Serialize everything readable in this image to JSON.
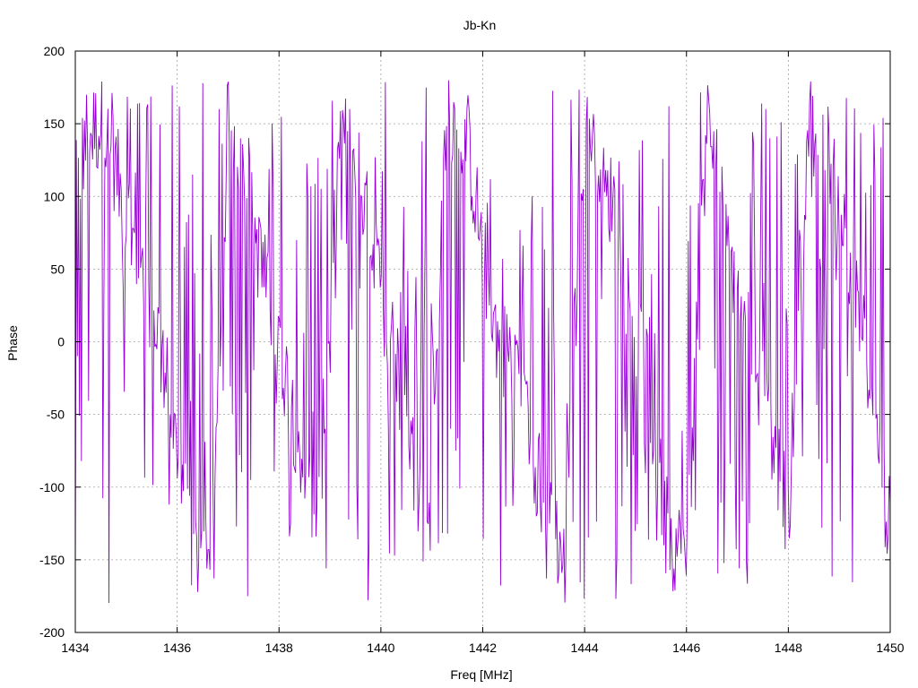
{
  "chart_data": {
    "type": "line",
    "title": "Jb-Kn",
    "xlabel": "Freq [MHz]",
    "ylabel": "Phase",
    "xlim": [
      1434,
      1450
    ],
    "ylim": [
      -200,
      200
    ],
    "xticks": [
      1434,
      1436,
      1438,
      1440,
      1442,
      1444,
      1446,
      1448,
      1450
    ],
    "yticks": [
      -200,
      -150,
      -100,
      -50,
      0,
      50,
      100,
      150,
      200
    ],
    "grid": true,
    "series": [
      {
        "color": "#9400d3",
        "trend": {
          "x": [
            1434.0,
            1434.2,
            1434.5,
            1434.8,
            1435.0,
            1435.2,
            1435.4,
            1435.7,
            1436.0,
            1436.3,
            1436.7,
            1437.0,
            1437.3,
            1437.6,
            1438.0,
            1438.4,
            1438.8,
            1439.2,
            1439.6,
            1439.9,
            1440.2,
            1440.5,
            1440.9,
            1441.3,
            1441.7,
            1442.0,
            1442.3,
            1442.6,
            1442.9,
            1443.2,
            1443.6,
            1444.0,
            1444.4,
            1444.8,
            1445.2,
            1445.6,
            1446.0,
            1446.4,
            1446.8,
            1447.2,
            1447.6,
            1448.0,
            1448.4,
            1448.8,
            1449.2,
            1449.6,
            1450.0
          ],
          "y": [
            100,
            140,
            150,
            120,
            80,
            60,
            30,
            0,
            -80,
            -140,
            -160,
            160,
            120,
            60,
            0,
            -70,
            -130,
            150,
            110,
            50,
            0,
            -50,
            -140,
            160,
            140,
            60,
            0,
            -10,
            -60,
            -110,
            -150,
            160,
            120,
            40,
            -20,
            -130,
            -150,
            150,
            100,
            20,
            -60,
            -120,
            150,
            130,
            60,
            -40,
            -130
          ]
        },
        "wrap_noise_amplitude": 120,
        "noise_amplitude": 35,
        "points": 800
      }
    ]
  }
}
